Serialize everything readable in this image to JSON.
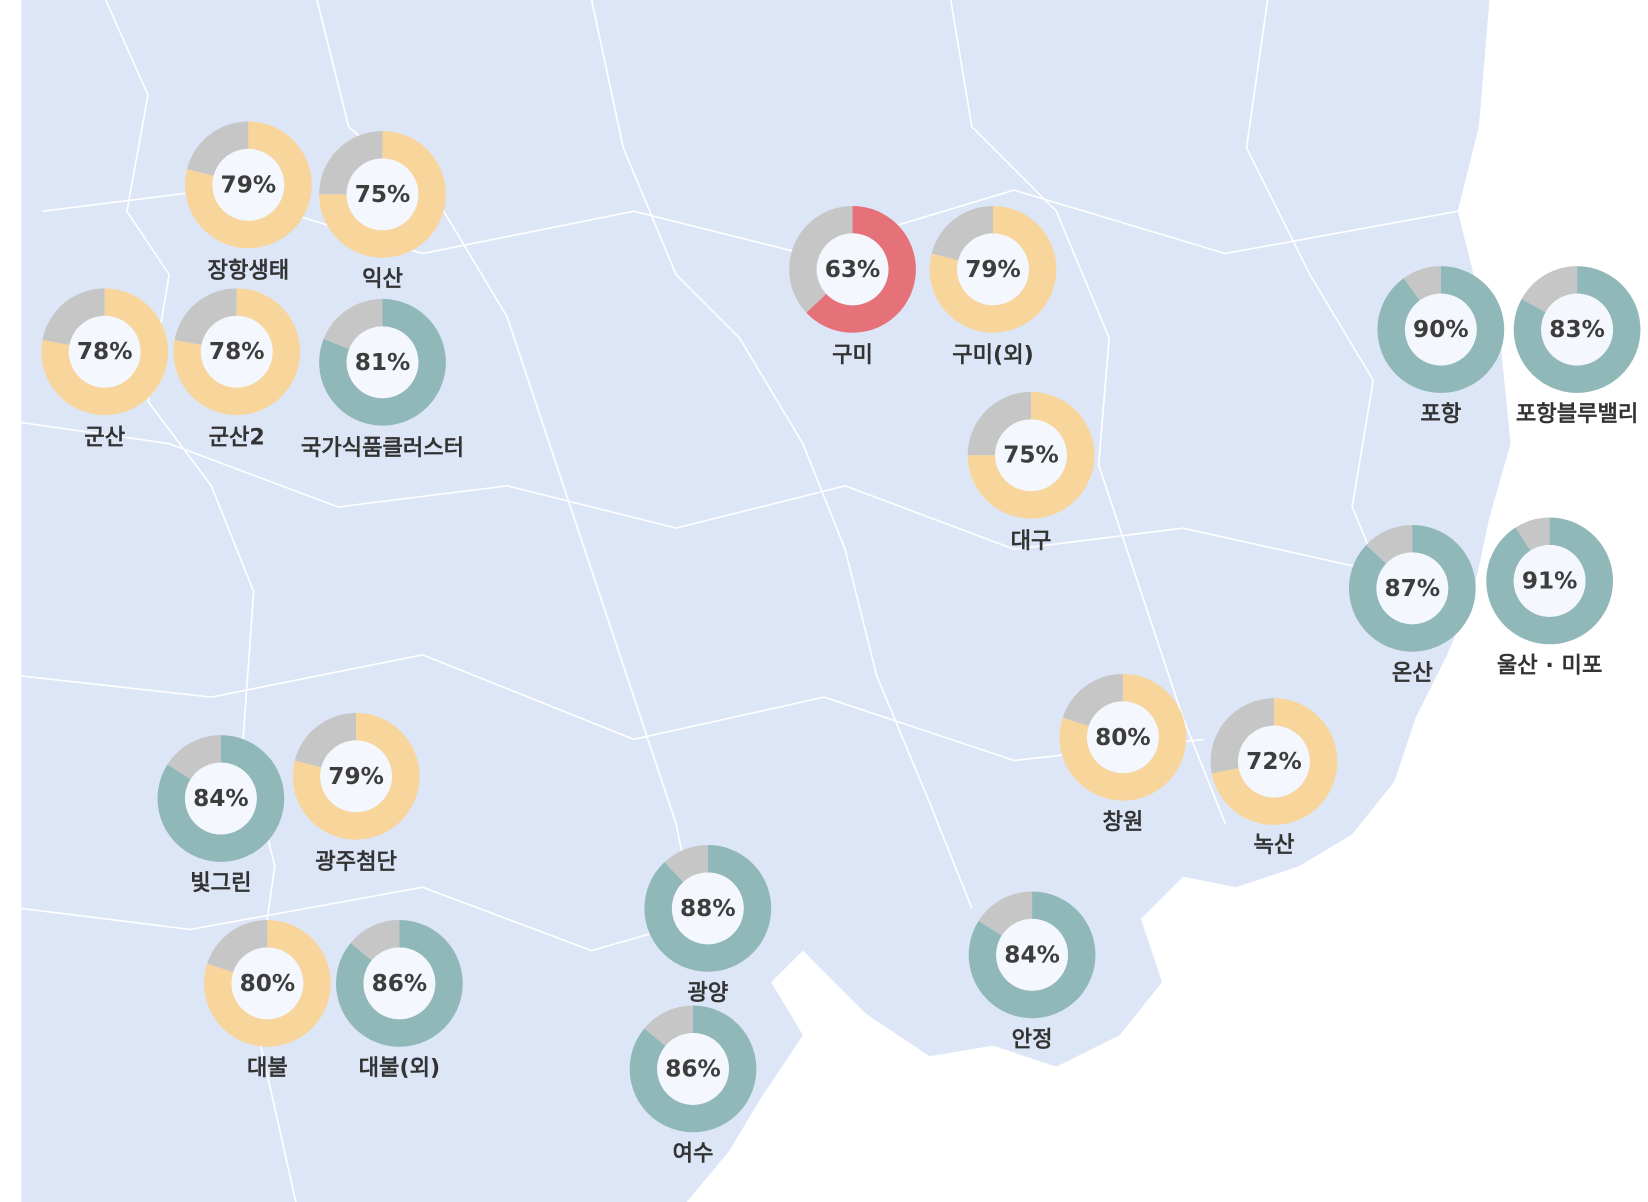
{
  "markers": [
    {
      "name": "장항생태",
      "value": 79,
      "value_label": "79%",
      "color": "#f8d59a"
    },
    {
      "name": "익산",
      "value": 75,
      "value_label": "75%",
      "color": "#f8d59a"
    },
    {
      "name": "군산",
      "value": 78,
      "value_label": "78%",
      "color": "#f8d59a"
    },
    {
      "name": "군산2",
      "value": 78,
      "value_label": "78%",
      "color": "#f8d59a"
    },
    {
      "name": "국가식품클러스터",
      "value": 81,
      "value_label": "81%",
      "color": "#90b8b9"
    },
    {
      "name": "구미",
      "value": 63,
      "value_label": "63%",
      "color": "#e57278"
    },
    {
      "name": "구미(외)",
      "value": 79,
      "value_label": "79%",
      "color": "#f8d59a"
    },
    {
      "name": "대구",
      "value": 75,
      "value_label": "75%",
      "color": "#f8d59a"
    },
    {
      "name": "포항",
      "value": 90,
      "value_label": "90%",
      "color": "#90b8b9"
    },
    {
      "name": "포항블루밸리",
      "value": 83,
      "value_label": "83%",
      "color": "#90b8b9"
    },
    {
      "name": "온산",
      "value": 87,
      "value_label": "87%",
      "color": "#90b8b9"
    },
    {
      "name": "울산 · 미포",
      "value": 91,
      "value_label": "91%",
      "color": "#90b8b9"
    },
    {
      "name": "창원",
      "value": 80,
      "value_label": "80%",
      "color": "#f8d59a"
    },
    {
      "name": "녹산",
      "value": 72,
      "value_label": "72%",
      "color": "#f8d59a"
    },
    {
      "name": "빛그린",
      "value": 84,
      "value_label": "84%",
      "color": "#90b8b9"
    },
    {
      "name": "광주첨단",
      "value": 79,
      "value_label": "79%",
      "color": "#f8d59a"
    },
    {
      "name": "광양",
      "value": 88,
      "value_label": "88%",
      "color": "#90b8b9"
    },
    {
      "name": "안정",
      "value": 84,
      "value_label": "84%",
      "color": "#90b8b9"
    },
    {
      "name": "대불",
      "value": 80,
      "value_label": "80%",
      "color": "#f8d59a"
    },
    {
      "name": "대불(외)",
      "value": 86,
      "value_label": "86%",
      "color": "#90b8b9"
    },
    {
      "name": "여수",
      "value": 86,
      "value_label": "86%",
      "color": "#90b8b9"
    }
  ],
  "remainder_color": "#c6c6c6"
}
